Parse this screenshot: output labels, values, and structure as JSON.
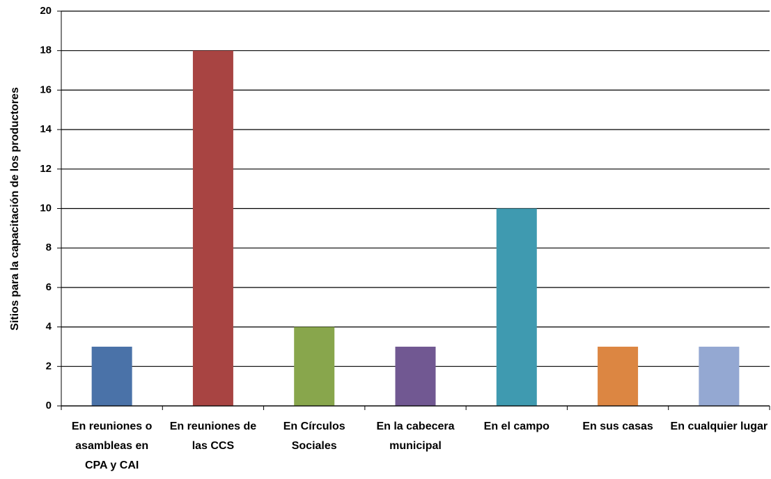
{
  "chart_data": {
    "type": "bar",
    "y_label": "Sitios para la capacitación de los productores",
    "categories": [
      "En reuniones o asambleas en CPA y CAI",
      "En reuniones de las CCS",
      "En Círculos Sociales",
      "En la cabecera municipal",
      "En el campo",
      "En sus casas",
      "En cualquier lugar"
    ],
    "values": [
      3,
      18,
      4,
      3,
      10,
      3,
      3
    ],
    "colors": [
      "#4a72a8",
      "#a84442",
      "#88a64c",
      "#715892",
      "#3f9ab0",
      "#dc8642",
      "#94a8d2"
    ],
    "ylim": [
      0,
      20
    ],
    "yticks": [
      0,
      2,
      4,
      6,
      8,
      10,
      12,
      14,
      16,
      18,
      20
    ],
    "grid": true
  }
}
